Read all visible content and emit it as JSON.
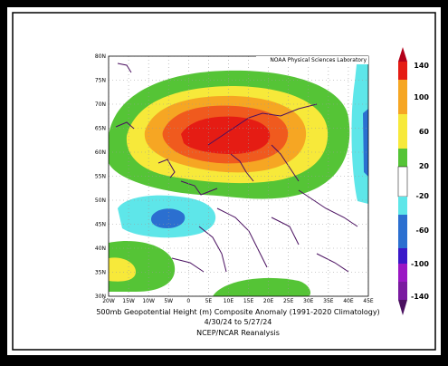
{
  "map": {
    "credit": "NOAA Physical Sciences Laboratory",
    "lat_labels": [
      "80N",
      "75N",
      "70N",
      "65N",
      "60N",
      "55N",
      "50N",
      "45N",
      "40N",
      "35N",
      "30N"
    ],
    "lon_labels": [
      "20W",
      "15W",
      "10W",
      "5W",
      "0",
      "5E",
      "10E",
      "15E",
      "20E",
      "25E",
      "30E",
      "35E",
      "40E",
      "45E"
    ],
    "caption": [
      "500mb Geopotential Height (m) Composite Anomaly (1991-2020 Climatology)",
      "4/30/24  to 5/27/24",
      "NCEP/NCAR Reanalysis"
    ],
    "colorbar_labels": [
      "140",
      "100",
      "60",
      "20",
      "-20",
      "-60",
      "-100",
      "-140"
    ]
  }
}
